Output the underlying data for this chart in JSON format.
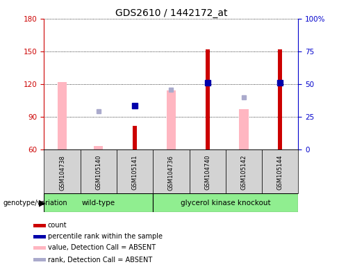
{
  "title": "GDS2610 / 1442172_at",
  "samples": [
    "GSM104738",
    "GSM105140",
    "GSM105141",
    "GSM104736",
    "GSM104740",
    "GSM105142",
    "GSM105144"
  ],
  "ylim_left": [
    60,
    180
  ],
  "ylim_right": [
    0,
    100
  ],
  "yticks_left": [
    60,
    90,
    120,
    150,
    180
  ],
  "yticks_right": [
    0,
    25,
    50,
    75,
    100
  ],
  "pink_bar_heights": [
    122,
    63,
    null,
    114,
    null,
    97,
    null
  ],
  "red_bar_heights": [
    null,
    null,
    82,
    null,
    152,
    null,
    152
  ],
  "light_blue_sq_y": [
    null,
    95,
    null,
    115,
    null,
    108,
    null
  ],
  "blue_sq_y": [
    null,
    null,
    100,
    null,
    121,
    null,
    121
  ],
  "pink_bar_width": 0.25,
  "red_bar_width": 0.12,
  "pink_color": "#FFB6C1",
  "lightblue_color": "#AAAACC",
  "red_color": "#CC0000",
  "blue_color": "#0000AA",
  "left_axis_color": "#CC0000",
  "right_axis_color": "#0000CC",
  "wildtype_label": "wild-type",
  "knockout_label": "glycerol kinase knockout",
  "group_color": "#90EE90",
  "genotype_label": "genotype/variation",
  "legend_items": [
    {
      "label": "count",
      "color": "#CC0000"
    },
    {
      "label": "percentile rank within the sample",
      "color": "#0000AA"
    },
    {
      "label": "value, Detection Call = ABSENT",
      "color": "#FFB6C1"
    },
    {
      "label": "rank, Detection Call = ABSENT",
      "color": "#AAAACC"
    }
  ]
}
